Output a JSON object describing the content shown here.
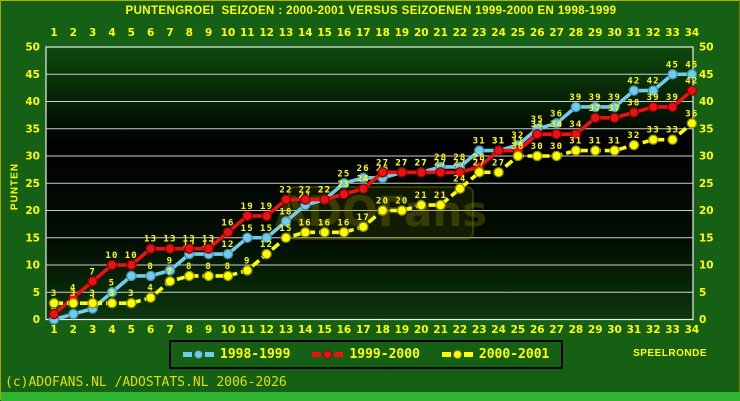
{
  "title": "PUNTENGROEI  SEIZOEN : 2000-2001 VERSUS SEIZOENEN 1999-2000 EN 1998-1999",
  "watermark": "ADOFans",
  "footer": "(c)ADOFANS.NL /ADOSTATS.NL 2006-2026",
  "axes": {
    "y_label": "PUNTEN",
    "x_label": "SPEELRONDE"
  },
  "colors": {
    "background": "#156015",
    "plot_top": "#0d4a0d",
    "plot_mid": "#010101",
    "plot_bottom": "#0c380c",
    "grid": "#dcdcdc",
    "text": "#ffff00",
    "bottom_strip": "#2eb42e"
  },
  "chart_data": {
    "type": "line",
    "title": "PUNTENGROEI SEIZOEN : 2000-2001 VERSUS SEIZOENEN 1999-2000 EN 1998-1999",
    "xlabel": "SPEELRONDE",
    "ylabel": "PUNTEN",
    "ylim": [
      0,
      50
    ],
    "grid": true,
    "legend_position": "bottom",
    "y_ticks": [
      0,
      5,
      10,
      15,
      20,
      25,
      30,
      35,
      40,
      45,
      50
    ],
    "x": [
      1,
      2,
      3,
      4,
      5,
      6,
      7,
      8,
      9,
      10,
      11,
      12,
      13,
      14,
      15,
      16,
      17,
      18,
      19,
      20,
      21,
      22,
      23,
      24,
      25,
      26,
      27,
      28,
      29,
      30,
      31,
      32,
      33,
      34
    ],
    "series": [
      {
        "name": "1998-1999",
        "color": "#74cbe8",
        "edge": "#3c8fb4",
        "dashed": false,
        "values": [
          0,
          1,
          2,
          5,
          8,
          8,
          9,
          12,
          12,
          12,
          15,
          15,
          18,
          21,
          22,
          25,
          26,
          26,
          27,
          27,
          28,
          28,
          31,
          31,
          32,
          35,
          36,
          39,
          39,
          39,
          42,
          42,
          45,
          45
        ]
      },
      {
        "name": "1999-2000",
        "color": "#ee1111",
        "edge": "#7e0505",
        "dashed": false,
        "values": [
          1,
          4,
          7,
          10,
          10,
          13,
          13,
          13,
          13,
          16,
          19,
          19,
          22,
          22,
          22,
          23,
          24,
          27,
          27,
          27,
          27,
          27,
          28,
          31,
          31,
          34,
          34,
          34,
          37,
          37,
          38,
          39,
          39,
          42
        ]
      },
      {
        "name": "2000-2001",
        "color": "#ffff00",
        "edge": "#8f8f00",
        "dashed": true,
        "values": [
          3,
          3,
          3,
          3,
          3,
          4,
          7,
          8,
          8,
          8,
          9,
          12,
          15,
          16,
          16,
          16,
          17,
          20,
          20,
          21,
          21,
          24,
          27,
          27,
          30,
          30,
          30,
          31,
          31,
          31,
          32,
          33,
          33,
          36
        ]
      }
    ]
  }
}
